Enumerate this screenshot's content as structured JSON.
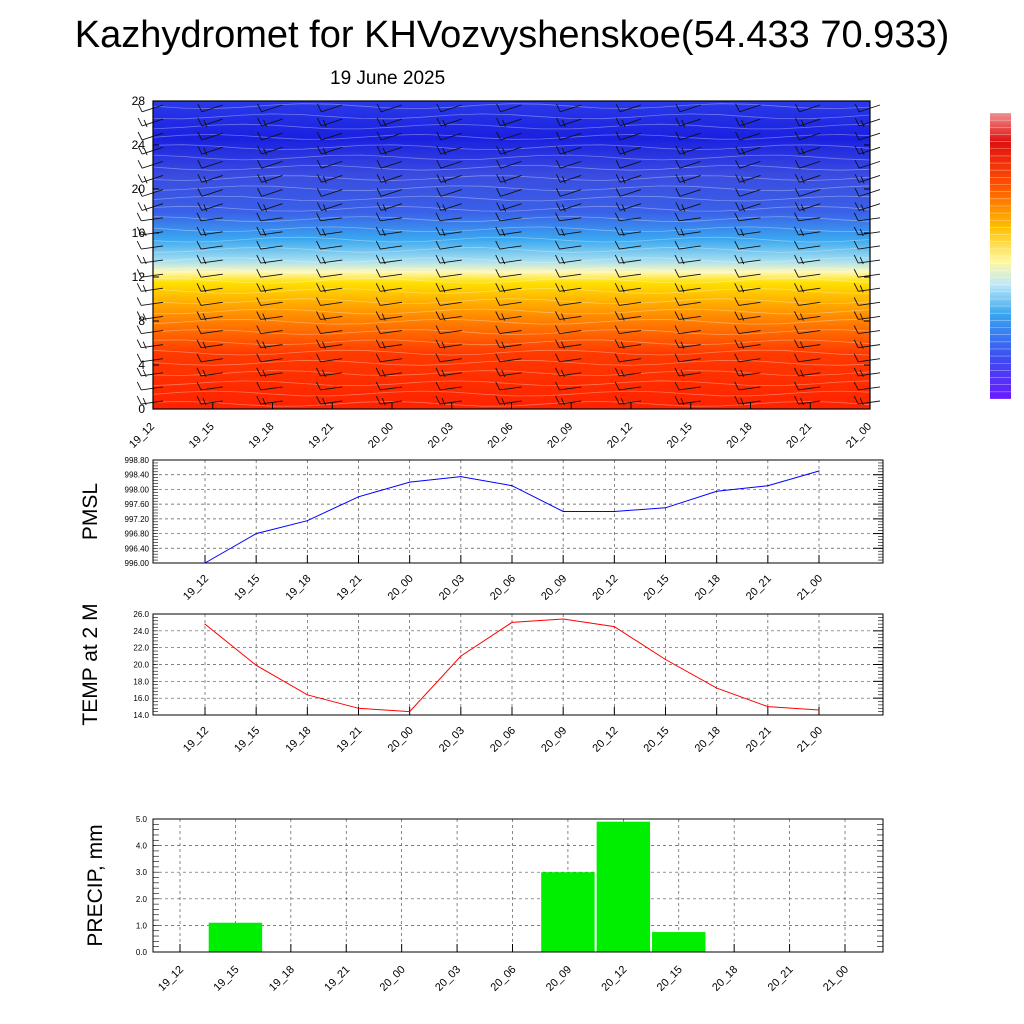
{
  "title": "Kazhydromet for KHVozvyshenskoe(54.433 70.933)",
  "subtitle": "19 June 2025",
  "time_labels": [
    "19_12",
    "19_15",
    "19_18",
    "19_21",
    "20_00",
    "20_03",
    "20_06",
    "20_09",
    "20_12",
    "20_15",
    "20_18",
    "20_21",
    "21_00"
  ],
  "chart_data": [
    {
      "type": "heatmap",
      "title": "",
      "xlabel": "",
      "ylabel": "",
      "x": [
        "19_12",
        "19_15",
        "19_18",
        "19_21",
        "20_00",
        "20_03",
        "20_06",
        "20_09",
        "20_12",
        "20_15",
        "20_18",
        "20_21",
        "21_00"
      ],
      "yticks": [
        "0",
        "4",
        "8",
        "12",
        "16",
        "20",
        "24",
        "28"
      ],
      "ylim": [
        0,
        28
      ],
      "description_colors": {
        "low": "#ff2a00",
        "mid_low": "#ffd200",
        "transition": "#fff8b0",
        "mid_high": "#3fb4f0",
        "high": "#1e28e6"
      },
      "legend_position": "right",
      "overlay": "wind-barbs"
    },
    {
      "type": "line",
      "title": "",
      "xlabel": "",
      "ylabel": "PMSL",
      "x": [
        "19_12",
        "19_15",
        "19_18",
        "19_21",
        "20_00",
        "20_03",
        "20_06",
        "20_09",
        "20_12",
        "20_15",
        "20_18",
        "20_21",
        "21_00"
      ],
      "values": [
        996.0,
        996.8,
        997.15,
        997.8,
        998.2,
        998.35,
        998.1,
        997.4,
        997.4,
        997.5,
        997.95,
        998.1,
        998.5
      ],
      "yticks": [
        "996.00",
        "996.40",
        "996.80",
        "997.20",
        "997.60",
        "998.00",
        "998.40",
        "998.80"
      ],
      "ylim": [
        996.0,
        998.8
      ],
      "color": "#0000ff",
      "grid": true
    },
    {
      "type": "line",
      "title": "",
      "xlabel": "",
      "ylabel": "TEMP at 2 M",
      "x": [
        "19_12",
        "19_15",
        "19_18",
        "19_21",
        "20_00",
        "20_03",
        "20_06",
        "20_09",
        "20_12",
        "20_15",
        "20_18",
        "20_21",
        "21_00"
      ],
      "values": [
        24.8,
        19.9,
        16.4,
        14.8,
        14.4,
        21.0,
        25.0,
        25.4,
        24.5,
        20.6,
        17.2,
        15.0,
        14.6
      ],
      "yticks": [
        "14.0",
        "16.0",
        "18.0",
        "20.0",
        "22.0",
        "24.0",
        "26.0"
      ],
      "ylim": [
        14.0,
        26.0
      ],
      "color": "#ff0000",
      "grid": true
    },
    {
      "type": "bar",
      "title": "",
      "xlabel": "",
      "ylabel": "PRECIP, mm",
      "categories": [
        "19_12",
        "19_15",
        "19_18",
        "19_21",
        "20_00",
        "20_03",
        "20_06",
        "20_09",
        "20_12",
        "20_15",
        "20_18",
        "20_21",
        "21_00"
      ],
      "values": [
        0,
        1.1,
        0,
        0,
        0,
        0,
        0,
        3.0,
        4.9,
        0.75,
        0,
        0,
        0
      ],
      "yticks": [
        "0.0",
        "1.0",
        "2.0",
        "3.0",
        "4.0",
        "5.0"
      ],
      "ylim": [
        0,
        5.0
      ],
      "color": "#00ee00",
      "grid": true
    }
  ]
}
